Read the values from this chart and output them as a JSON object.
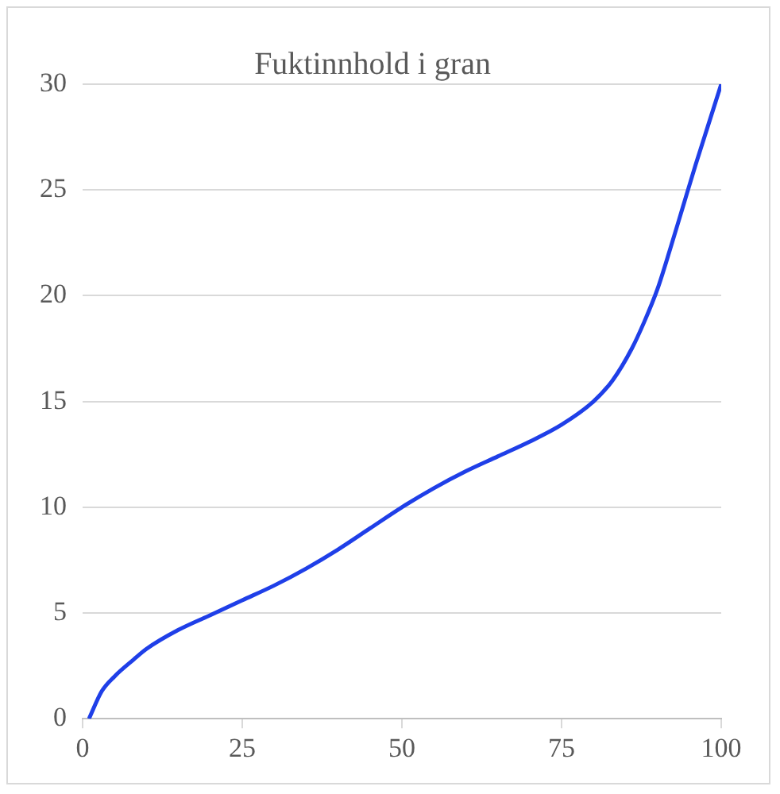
{
  "chart_data": {
    "type": "line",
    "title": "Fuktinnhold i gran",
    "x": [
      1,
      3,
      5,
      8,
      10,
      15,
      20,
      25,
      30,
      35,
      40,
      45,
      50,
      55,
      60,
      65,
      70,
      75,
      80,
      83,
      86,
      88,
      90,
      92,
      94,
      96,
      98,
      100
    ],
    "series": [
      {
        "color": "#1f3fe8",
        "values": [
          0,
          1.3,
          2,
          2.8,
          3.3,
          4.2,
          4.9,
          5.6,
          6.3,
          7.1,
          8,
          9,
          10,
          10.9,
          11.7,
          12.4,
          13.1,
          13.9,
          15,
          16,
          17.5,
          18.8,
          20.3,
          22.2,
          24.2,
          26.2,
          28.1,
          30
        ]
      }
    ],
    "xlim": [
      0,
      100
    ],
    "xticks": [
      0,
      25,
      50,
      75,
      100
    ],
    "ylim": [
      0,
      30
    ],
    "yticks": [
      0,
      5,
      10,
      15,
      20,
      25,
      30
    ],
    "grid": "y",
    "legend": false,
    "marker": "none",
    "line_style": "solid"
  }
}
